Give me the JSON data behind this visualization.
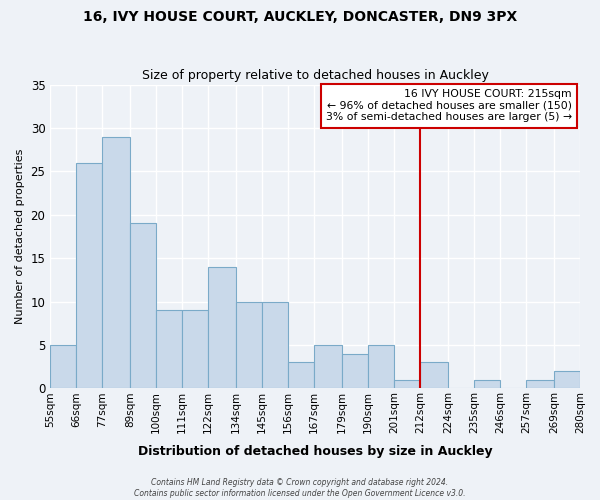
{
  "title": "16, IVY HOUSE COURT, AUCKLEY, DONCASTER, DN9 3PX",
  "subtitle": "Size of property relative to detached houses in Auckley",
  "xlabel": "Distribution of detached houses by size in Auckley",
  "ylabel": "Number of detached properties",
  "bar_color": "#c9d9ea",
  "bar_edge_color": "#7aaac8",
  "bg_color": "#eef2f7",
  "grid_color": "white",
  "vline_x": 212,
  "vline_color": "#cc0000",
  "bin_edges": [
    55,
    66,
    77,
    89,
    100,
    111,
    122,
    134,
    145,
    156,
    167,
    179,
    190,
    201,
    212,
    224,
    235,
    246,
    257,
    269,
    280
  ],
  "bin_labels": [
    "55sqm",
    "66sqm",
    "77sqm",
    "89sqm",
    "100sqm",
    "111sqm",
    "122sqm",
    "134sqm",
    "145sqm",
    "156sqm",
    "167sqm",
    "179sqm",
    "190sqm",
    "201sqm",
    "212sqm",
    "224sqm",
    "235sqm",
    "246sqm",
    "257sqm",
    "269sqm",
    "280sqm"
  ],
  "counts": [
    5,
    26,
    29,
    19,
    9,
    9,
    14,
    10,
    10,
    3,
    5,
    4,
    5,
    1,
    3,
    0,
    1,
    0,
    1,
    2
  ],
  "ylim": [
    0,
    35
  ],
  "yticks": [
    0,
    5,
    10,
    15,
    20,
    25,
    30,
    35
  ],
  "annotation_line1": "16 IVY HOUSE COURT: 215sqm",
  "annotation_line2": "← 96% of detached houses are smaller (150)",
  "annotation_line3": "3% of semi-detached houses are larger (5) →",
  "footer1": "Contains HM Land Registry data © Crown copyright and database right 2024.",
  "footer2": "Contains public sector information licensed under the Open Government Licence v3.0."
}
